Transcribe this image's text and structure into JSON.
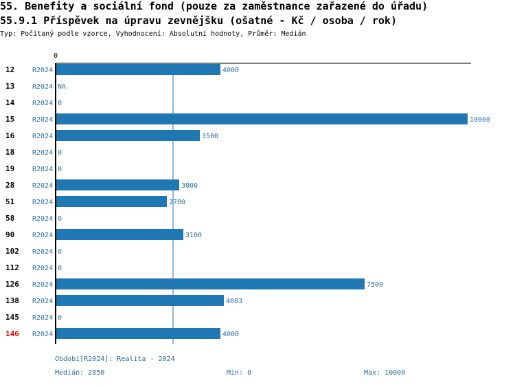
{
  "header": {
    "title": "55. Benefity a sociální fond (pouze za zaměstnance zařazené do úřadu)",
    "subtitle": "55.9.1 Příspěvek na úpravu zevnějšku (ošatné - Kč / osoba / rok)",
    "type_line": "Typ: Počítaný podle vzorce, Vyhodnocení: Absolutní hodnoty, Průměr: Medián"
  },
  "chart_data": {
    "type": "bar",
    "orientation": "horizontal",
    "x_tick_labels": [
      "0"
    ],
    "xlim": [
      0,
      10000
    ],
    "median_line": 2850,
    "bar_color": "#1f77b4",
    "highlight_color": "#e00000",
    "rows": [
      {
        "id": "12",
        "series": "R2024",
        "value": 4000,
        "label": "4000",
        "highlight": false
      },
      {
        "id": "13",
        "series": "R2024",
        "value": null,
        "label": "NA",
        "highlight": false
      },
      {
        "id": "14",
        "series": "R2024",
        "value": 0,
        "label": "0",
        "highlight": false
      },
      {
        "id": "15",
        "series": "R2024",
        "value": 10000,
        "label": "10000",
        "highlight": false
      },
      {
        "id": "16",
        "series": "R2024",
        "value": 3500,
        "label": "3500",
        "highlight": false
      },
      {
        "id": "18",
        "series": "R2024",
        "value": 0,
        "label": "0",
        "highlight": false
      },
      {
        "id": "19",
        "series": "R2024",
        "value": 0,
        "label": "0",
        "highlight": false
      },
      {
        "id": "28",
        "series": "R2024",
        "value": 3000,
        "label": "3000",
        "highlight": false
      },
      {
        "id": "51",
        "series": "R2024",
        "value": 2700,
        "label": "2700",
        "highlight": false
      },
      {
        "id": "58",
        "series": "R2024",
        "value": 0,
        "label": "0",
        "highlight": false
      },
      {
        "id": "90",
        "series": "R2024",
        "value": 3100,
        "label": "3100",
        "highlight": false
      },
      {
        "id": "102",
        "series": "R2024",
        "value": 0,
        "label": "0",
        "highlight": false
      },
      {
        "id": "112",
        "series": "R2024",
        "value": 0,
        "label": "0",
        "highlight": false
      },
      {
        "id": "126",
        "series": "R2024",
        "value": 7500,
        "label": "7500",
        "highlight": false
      },
      {
        "id": "138",
        "series": "R2024",
        "value": 4083,
        "label": "4083",
        "highlight": false
      },
      {
        "id": "145",
        "series": "R2024",
        "value": 0,
        "label": "0",
        "highlight": false
      },
      {
        "id": "146",
        "series": "R2024",
        "value": 4000,
        "label": "4000",
        "highlight": true
      }
    ]
  },
  "footer": {
    "period": "Období[R2024]: Realita - 2024",
    "median": "Medián: 2850",
    "min": "Min: 0",
    "max": "Max: 10000"
  }
}
